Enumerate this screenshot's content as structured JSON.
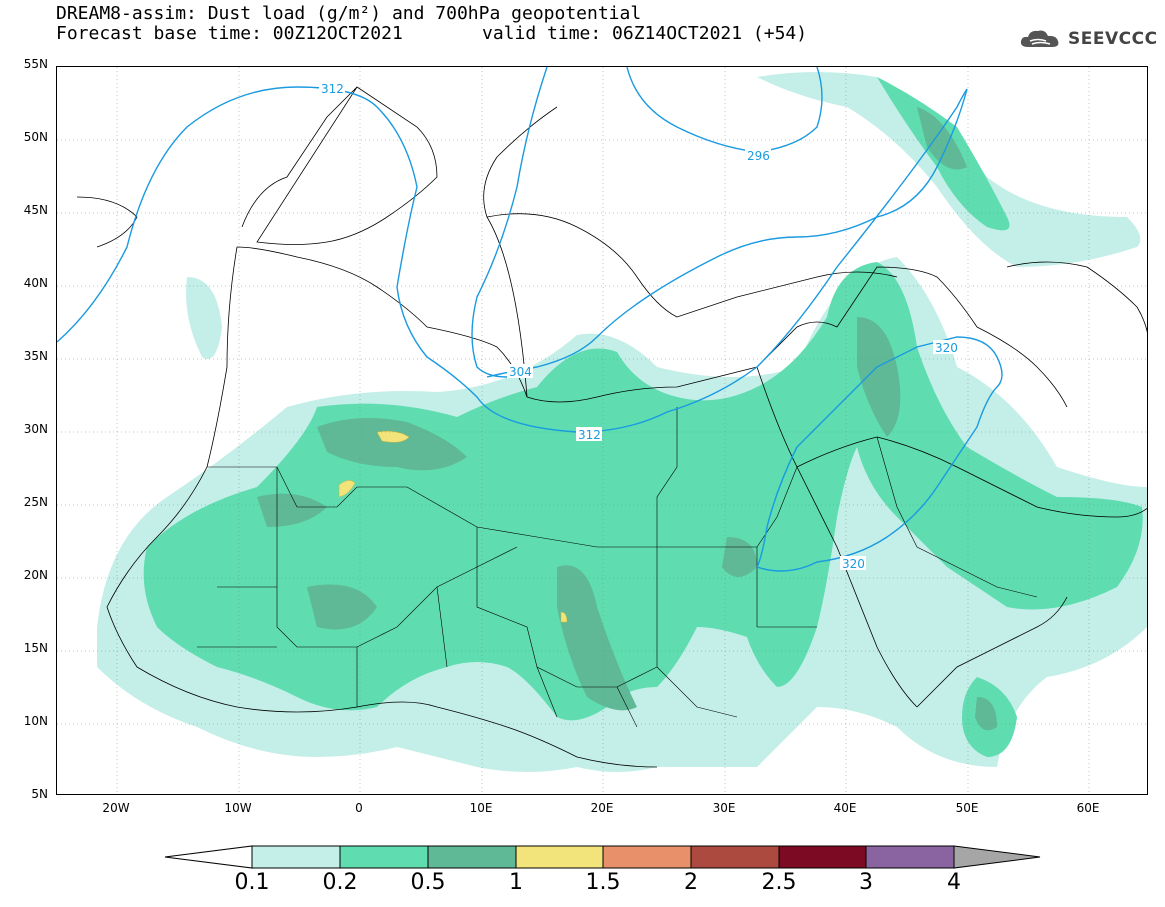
{
  "title": {
    "line1": "DREAM8-assim: Dust load (g/m²) and 700hPa geopotential",
    "line2a": "Forecast base time: 00Z12OCT2021",
    "line2b": "valid time: 06Z14OCT2021 (+54)"
  },
  "logo": {
    "text": "SEEVCCC",
    "icon": "cloud-icon"
  },
  "map": {
    "lat_labels": [
      "55N",
      "50N",
      "45N",
      "40N",
      "35N",
      "30N",
      "25N",
      "20N",
      "15N",
      "10N",
      "5N"
    ],
    "lon_labels": [
      "20W",
      "10W",
      "0",
      "10E",
      "20E",
      "30E",
      "40E",
      "50E",
      "60E"
    ],
    "contour_labels": [
      "312",
      "296",
      "304",
      "312",
      "320",
      "320"
    ],
    "colors": {
      "land_border": "#000000",
      "contour": "#1a9ae0"
    }
  },
  "colorbar": {
    "labels": [
      "0.1",
      "0.2",
      "0.5",
      "1",
      "1.5",
      "2",
      "2.5",
      "3",
      "4"
    ],
    "colors": [
      "#c4efe8",
      "#5fdcb0",
      "#5fb896",
      "#f2e37a",
      "#e8906a",
      "#ac4a40",
      "#7c0a22",
      "#8a64a0"
    ],
    "below_color": "#ffffff",
    "above_color": "#a6a6a6"
  }
}
